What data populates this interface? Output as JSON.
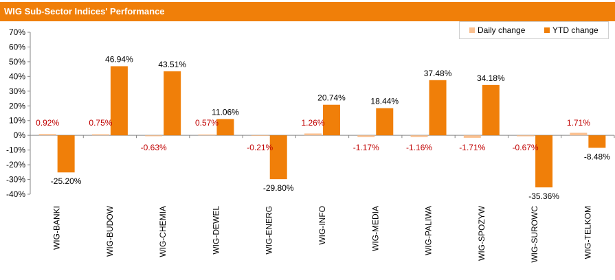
{
  "header": {
    "title": "WIG Sub-Sector Indices' Performance"
  },
  "colors": {
    "header_bg": "#f07f09",
    "daily": "#fac090",
    "ytd": "#f07f09",
    "daily_label": "#c00000",
    "ytd_label": "#000000"
  },
  "chart_data": {
    "type": "bar",
    "title": "WIG Sub-Sector Indices' Performance",
    "xlabel": "",
    "ylabel": "",
    "categories": [
      "WIG-BANKI",
      "WIG-BUDOW",
      "WIG-CHEMIA",
      "WIG-DEWEL",
      "WIG-ENERG",
      "WIG-INFO",
      "WIG-MEDIA",
      "WIG-PALIWA",
      "WIG-SPOZYW",
      "WIG-SUROWC",
      "WIG-TELKOM"
    ],
    "series": [
      {
        "name": "Daily change",
        "values": [
          0.92,
          0.75,
          -0.63,
          0.57,
          -0.21,
          1.26,
          -1.17,
          -1.16,
          -1.71,
          -0.67,
          1.71
        ],
        "labels": [
          "0.92%",
          "0.75%",
          "-0.63%",
          "0.57%",
          "-0.21%",
          "1.26%",
          "-1.17%",
          "-1.16%",
          "-1.71%",
          "-0.67%",
          "1.71%"
        ]
      },
      {
        "name": "YTD change",
        "values": [
          -25.2,
          46.94,
          43.51,
          11.06,
          -29.8,
          20.74,
          18.44,
          37.48,
          34.18,
          -35.36,
          -8.48
        ],
        "labels": [
          "-25.20%",
          "46.94%",
          "43.51%",
          "11.06%",
          "-29.80%",
          "20.74%",
          "18.44%",
          "37.48%",
          "34.18%",
          "-35.36%",
          "-8.48%"
        ]
      }
    ],
    "ylim": [
      -40,
      70
    ],
    "yticks": [
      70,
      60,
      50,
      40,
      30,
      20,
      10,
      0,
      -10,
      -20,
      -30,
      -40
    ],
    "ytick_labels": [
      "70%",
      "60%",
      "50%",
      "40%",
      "30%",
      "20%",
      "10%",
      "0%",
      "-10%",
      "-20%",
      "-30%",
      "-40%"
    ],
    "grid": false,
    "legend": "top-right"
  }
}
